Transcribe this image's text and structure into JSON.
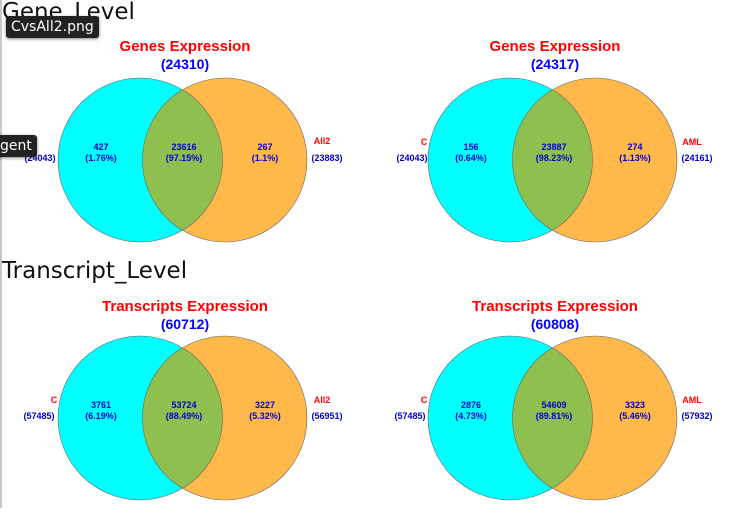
{
  "sections": {
    "gene_level": "Gene_Level",
    "transcript_level": "Transcript_Level"
  },
  "tooltips": {
    "file_name": "CvsAll2.png",
    "partial_label": "gent"
  },
  "colors": {
    "left_circle": "#00ffff",
    "right_circle": "#ffb94a",
    "overlap": "#8fc04f",
    "title": "#ff0000",
    "numbers": "#0000cc"
  },
  "venns": [
    {
      "title": "Genes Expression",
      "total": "(24310)",
      "left_label": "",
      "left_total": "(24043)",
      "right_label": "All2",
      "right_total": "(23883)",
      "left_only": "427",
      "left_only_pct": "(1.76%)",
      "both": "23616",
      "both_pct": "(97.15%)",
      "right_only": "267",
      "right_only_pct": "(1.1%)"
    },
    {
      "title": "Genes Expression",
      "total": "(24317)",
      "left_label": "C",
      "left_total": "(24043)",
      "right_label": "AML",
      "right_total": "(24161)",
      "left_only": "156",
      "left_only_pct": "(0.64%)",
      "both": "23887",
      "both_pct": "(98.23%)",
      "right_only": "274",
      "right_only_pct": "(1.13%)"
    },
    {
      "title": "Transcripts Expression",
      "total": "(60712)",
      "left_label": "C",
      "left_total": "(57485)",
      "right_label": "All2",
      "right_total": "(56951)",
      "left_only": "3761",
      "left_only_pct": "(6.19%)",
      "both": "53724",
      "both_pct": "(88.49%)",
      "right_only": "3227",
      "right_only_pct": "(5.32%)"
    },
    {
      "title": "Transcripts Expression",
      "total": "(60808)",
      "left_label": "C",
      "left_total": "(57485)",
      "right_label": "AML",
      "right_total": "(57932)",
      "left_only": "2876",
      "left_only_pct": "(4.73%)",
      "both": "54609",
      "both_pct": "(89.81%)",
      "right_only": "3323",
      "right_only_pct": "(5.46%)"
    }
  ]
}
